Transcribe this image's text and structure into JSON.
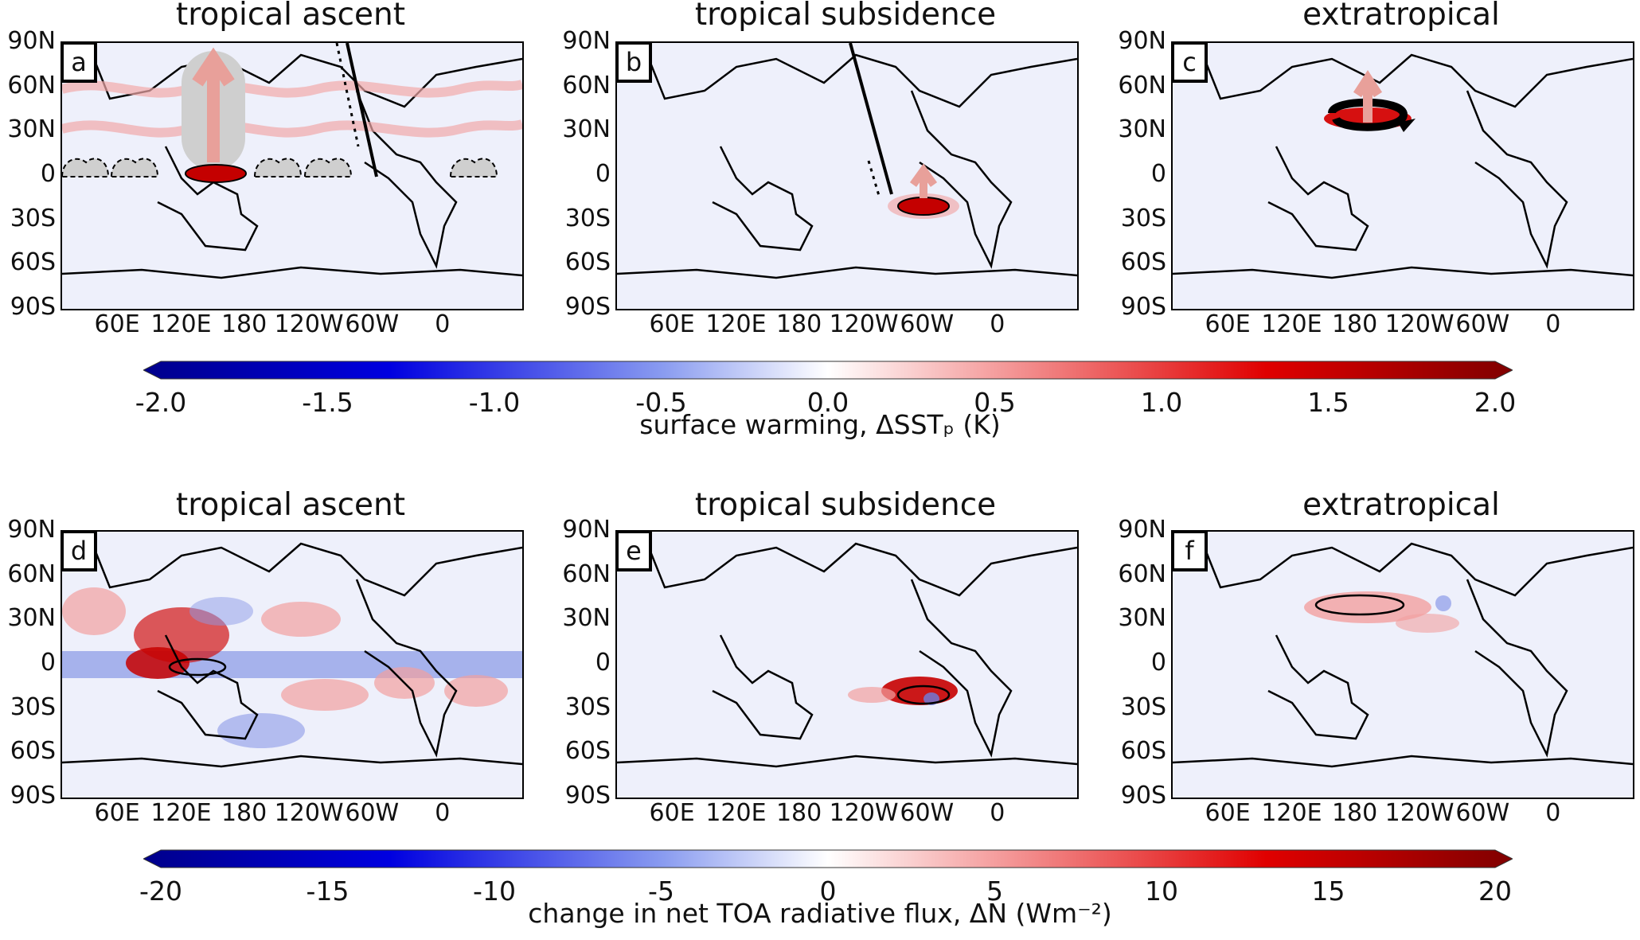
{
  "figure": {
    "rows": [
      {
        "panels": [
          {
            "label": "a",
            "title": "tropical ascent"
          },
          {
            "label": "b",
            "title": "tropical subsidence"
          },
          {
            "label": "c",
            "title": "extratropical"
          }
        ],
        "colorbar": {
          "ticks": [
            "-2.0",
            "-1.5",
            "-1.0",
            "-0.5",
            "0.0",
            "0.5",
            "1.0",
            "1.5",
            "2.0"
          ],
          "label": "surface warming, ΔSSTₚ (K)"
        }
      },
      {
        "panels": [
          {
            "label": "d",
            "title": "tropical ascent"
          },
          {
            "label": "e",
            "title": "tropical subsidence"
          },
          {
            "label": "f",
            "title": "extratropical"
          }
        ],
        "colorbar": {
          "ticks": [
            "-20",
            "-15",
            "-10",
            "-5",
            "0",
            "5",
            "10",
            "15",
            "20"
          ],
          "label": "change in net TOA radiative flux, ΔN (Wm⁻²)"
        }
      }
    ],
    "yticks": [
      "90N",
      "60N",
      "30N",
      "0",
      "30S",
      "60S",
      "90S"
    ],
    "xticks": [
      "60E",
      "120E",
      "180",
      "120W",
      "60W",
      "0"
    ],
    "colors": {
      "negative": "#0000b8",
      "zero": "#ffffff",
      "positive": "#8b0000"
    }
  }
}
